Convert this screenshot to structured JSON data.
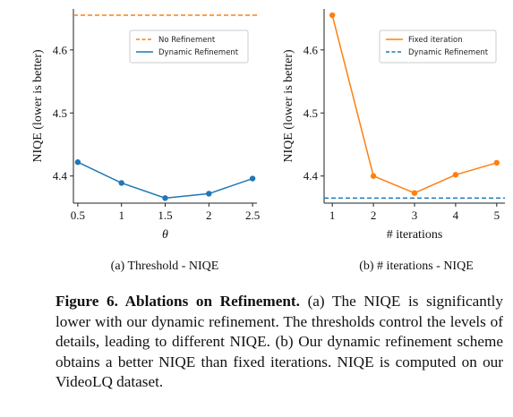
{
  "chart_data": [
    {
      "type": "line",
      "subtitle": "(a) Threshold - NIQE",
      "xlabel": "θ",
      "ylabel": "NIQE (lower is better)",
      "x": [
        0.5,
        1,
        1.5,
        2,
        2.5
      ],
      "x_ticks": [
        "0.5",
        "1",
        "1.5",
        "2",
        "2.5"
      ],
      "y_ticks": [
        "4.4",
        "4.5",
        "4.6"
      ],
      "xlim": [
        0.45,
        2.55
      ],
      "ylim": [
        4.357,
        4.665
      ],
      "grid": false,
      "legend_position": "upper-right",
      "series": [
        {
          "name": "No Refinement",
          "style": "dashed",
          "color": "#ff7f0e",
          "values": [
            4.655,
            4.655,
            4.655,
            4.655,
            4.655
          ]
        },
        {
          "name": "Dynamic Refinement",
          "style": "solid-markers",
          "color": "#1f77b4",
          "values": [
            4.422,
            4.389,
            4.365,
            4.372,
            4.396
          ]
        }
      ]
    },
    {
      "type": "line",
      "subtitle": "(b) # iterations - NIQE",
      "xlabel": "# iterations",
      "ylabel": "NIQE (lower is better)",
      "x": [
        1,
        2,
        3,
        4,
        5
      ],
      "x_ticks": [
        "1",
        "2",
        "3",
        "4",
        "5"
      ],
      "y_ticks": [
        "4.4",
        "4.5",
        "4.6"
      ],
      "xlim": [
        0.8,
        5.2
      ],
      "ylim": [
        4.357,
        4.665
      ],
      "grid": false,
      "legend_position": "upper-right",
      "series": [
        {
          "name": "Fixed iteration",
          "style": "solid-markers",
          "color": "#ff7f0e",
          "values": [
            4.655,
            4.4,
            4.373,
            4.402,
            4.421
          ]
        },
        {
          "name": "Dynamic Refinement",
          "style": "dashed",
          "color": "#1f77b4",
          "values": [
            4.365,
            4.365,
            4.365,
            4.365,
            4.365
          ]
        }
      ]
    }
  ],
  "caption": {
    "label": "Figure 6.",
    "title": "Ablations on Refinement.",
    "text": "(a) The NIQE is significantly lower with our dynamic refinement. The thresholds control the levels of details, leading to different NIQE. (b) Our dynamic refinement scheme obtains a better NIQE than fixed iterations. NIQE is computed on our VideoLQ dataset."
  }
}
